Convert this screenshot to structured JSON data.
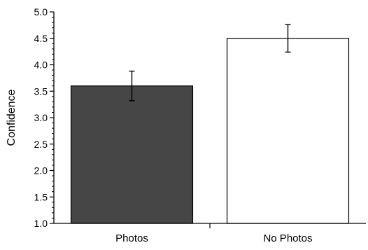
{
  "chart_data": {
    "type": "bar",
    "categories": [
      "Photos",
      "No Photos"
    ],
    "values": [
      3.6,
      4.5
    ],
    "error": [
      0.28,
      0.26
    ],
    "bar_colors": [
      "#464646",
      "#ffffff"
    ],
    "ylabel": "Confidence",
    "xlabel": "",
    "title": "",
    "ylim": [
      1.0,
      5.0
    ],
    "yticks": [
      "1.0",
      "1.5",
      "2.0",
      "2.5",
      "3.0",
      "3.5",
      "4.0",
      "4.5",
      "5.0"
    ],
    "grid": false
  }
}
